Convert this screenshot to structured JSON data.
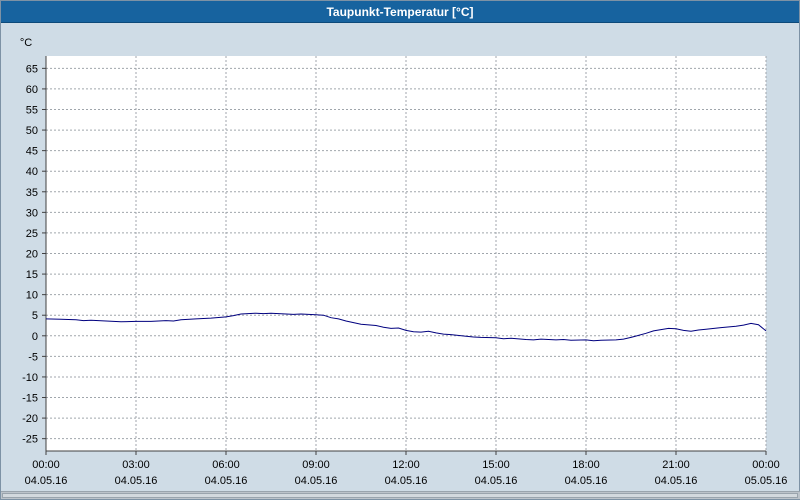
{
  "window": {
    "title": "Taupunkt-Temperatur [°C]"
  },
  "colors": {
    "titlebar": "#17639f",
    "background": "#cfdce6",
    "plot_background": "#ffffff",
    "grid": "#a0a6ac",
    "axis": "#404040",
    "line": "#00007f",
    "text": "#000000"
  },
  "chart_data": {
    "type": "line",
    "title": "Taupunkt-Temperatur [°C]",
    "ylabel": "°C",
    "ylim": [
      -28,
      68
    ],
    "xlim_hours": [
      0,
      24
    ],
    "grid": true,
    "legend": "none",
    "yticks": [
      65,
      60,
      55,
      50,
      45,
      40,
      35,
      30,
      25,
      20,
      15,
      10,
      5,
      0,
      -5,
      -10,
      -15,
      -20,
      -25
    ],
    "xticks": [
      {
        "hour": 0,
        "time": "00:00",
        "date": "04.05.16"
      },
      {
        "hour": 3,
        "time": "03:00",
        "date": "04.05.16"
      },
      {
        "hour": 6,
        "time": "06:00",
        "date": "04.05.16"
      },
      {
        "hour": 9,
        "time": "09:00",
        "date": "04.05.16"
      },
      {
        "hour": 12,
        "time": "12:00",
        "date": "04.05.16"
      },
      {
        "hour": 15,
        "time": "15:00",
        "date": "04.05.16"
      },
      {
        "hour": 18,
        "time": "18:00",
        "date": "04.05.16"
      },
      {
        "hour": 21,
        "time": "21:00",
        "date": "04.05.16"
      },
      {
        "hour": 24,
        "time": "00:00",
        "date": "05.05.16"
      }
    ],
    "series_name": "Taupunkt",
    "points": [
      [
        0,
        4.1
      ],
      [
        0.5,
        4.0
      ],
      [
        1,
        3.9
      ],
      [
        1.25,
        3.7
      ],
      [
        1.5,
        3.8
      ],
      [
        2,
        3.6
      ],
      [
        2.5,
        3.4
      ],
      [
        3,
        3.5
      ],
      [
        3.5,
        3.5
      ],
      [
        4,
        3.7
      ],
      [
        4.25,
        3.6
      ],
      [
        4.5,
        3.9
      ],
      [
        5,
        4.1
      ],
      [
        5.5,
        4.3
      ],
      [
        6,
        4.6
      ],
      [
        6.25,
        4.9
      ],
      [
        6.5,
        5.3
      ],
      [
        7,
        5.5
      ],
      [
        7.25,
        5.4
      ],
      [
        7.5,
        5.5
      ],
      [
        8,
        5.3
      ],
      [
        8.25,
        5.2
      ],
      [
        8.5,
        5.3
      ],
      [
        9,
        5.1
      ],
      [
        9.25,
        5.0
      ],
      [
        9.5,
        4.4
      ],
      [
        9.75,
        4.1
      ],
      [
        10,
        3.6
      ],
      [
        10.25,
        3.2
      ],
      [
        10.5,
        2.8
      ],
      [
        11,
        2.5
      ],
      [
        11.25,
        2.1
      ],
      [
        11.5,
        1.8
      ],
      [
        11.75,
        1.9
      ],
      [
        12,
        1.3
      ],
      [
        12.25,
        1.0
      ],
      [
        12.5,
        0.9
      ],
      [
        12.75,
        1.1
      ],
      [
        13,
        0.7
      ],
      [
        13.25,
        0.4
      ],
      [
        13.5,
        0.3
      ],
      [
        14,
        -0.1
      ],
      [
        14.25,
        -0.3
      ],
      [
        14.5,
        -0.4
      ],
      [
        15,
        -0.5
      ],
      [
        15.25,
        -0.7
      ],
      [
        15.5,
        -0.6
      ],
      [
        16,
        -0.9
      ],
      [
        16.25,
        -1.0
      ],
      [
        16.5,
        -0.8
      ],
      [
        17,
        -1.0
      ],
      [
        17.25,
        -0.9
      ],
      [
        17.5,
        -1.1
      ],
      [
        18,
        -1.0
      ],
      [
        18.25,
        -1.2
      ],
      [
        18.5,
        -1.1
      ],
      [
        19,
        -1.0
      ],
      [
        19.25,
        -0.8
      ],
      [
        19.5,
        -0.4
      ],
      [
        19.75,
        0.1
      ],
      [
        20,
        0.6
      ],
      [
        20.25,
        1.2
      ],
      [
        20.5,
        1.5
      ],
      [
        20.75,
        1.8
      ],
      [
        21,
        1.7
      ],
      [
        21.25,
        1.3
      ],
      [
        21.5,
        1.1
      ],
      [
        21.75,
        1.4
      ],
      [
        22,
        1.6
      ],
      [
        22.5,
        2.0
      ],
      [
        23,
        2.3
      ],
      [
        23.25,
        2.6
      ],
      [
        23.5,
        3.0
      ],
      [
        23.75,
        2.7
      ],
      [
        24,
        1.2
      ]
    ]
  }
}
